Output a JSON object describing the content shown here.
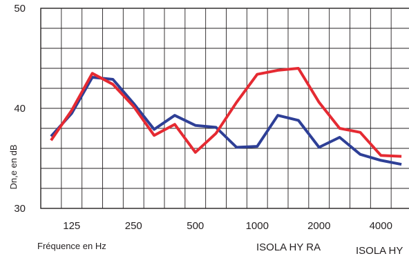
{
  "chart_data": {
    "type": "line",
    "title": "",
    "xlabel": "Fréquence en Hz",
    "ylabel": "Dn,e en dB",
    "ylim": [
      30,
      50
    ],
    "y_ticks": [
      "30",
      "40",
      "50"
    ],
    "x_tick_labels": [
      "125",
      "250",
      "500",
      "1000",
      "2000",
      "4000"
    ],
    "x": [
      100,
      125,
      160,
      200,
      250,
      315,
      400,
      500,
      630,
      800,
      1000,
      1250,
      1600,
      2000,
      2500,
      3150,
      4000,
      5000
    ],
    "x_scale": "log (1/3 octave)",
    "grid": true,
    "legend_position": "bottom-right",
    "series": [
      {
        "name": "ISOLA HY",
        "color": "#2e3f96",
        "values": [
          37.2,
          39.5,
          43.1,
          42.9,
          40.5,
          37.9,
          39.3,
          38.3,
          38.1,
          36.1,
          36.2,
          39.3,
          38.8,
          36.1,
          37.1,
          35.4,
          34.8,
          34.4
        ]
      },
      {
        "name": "ISOLA HY RA",
        "color": "#e52a32",
        "values": [
          36.8,
          39.8,
          43.5,
          42.4,
          40.2,
          37.3,
          38.4,
          35.6,
          37.5,
          40.6,
          43.4,
          43.8,
          44.0,
          40.6,
          38.0,
          37.6,
          35.3,
          35.2
        ]
      }
    ]
  }
}
